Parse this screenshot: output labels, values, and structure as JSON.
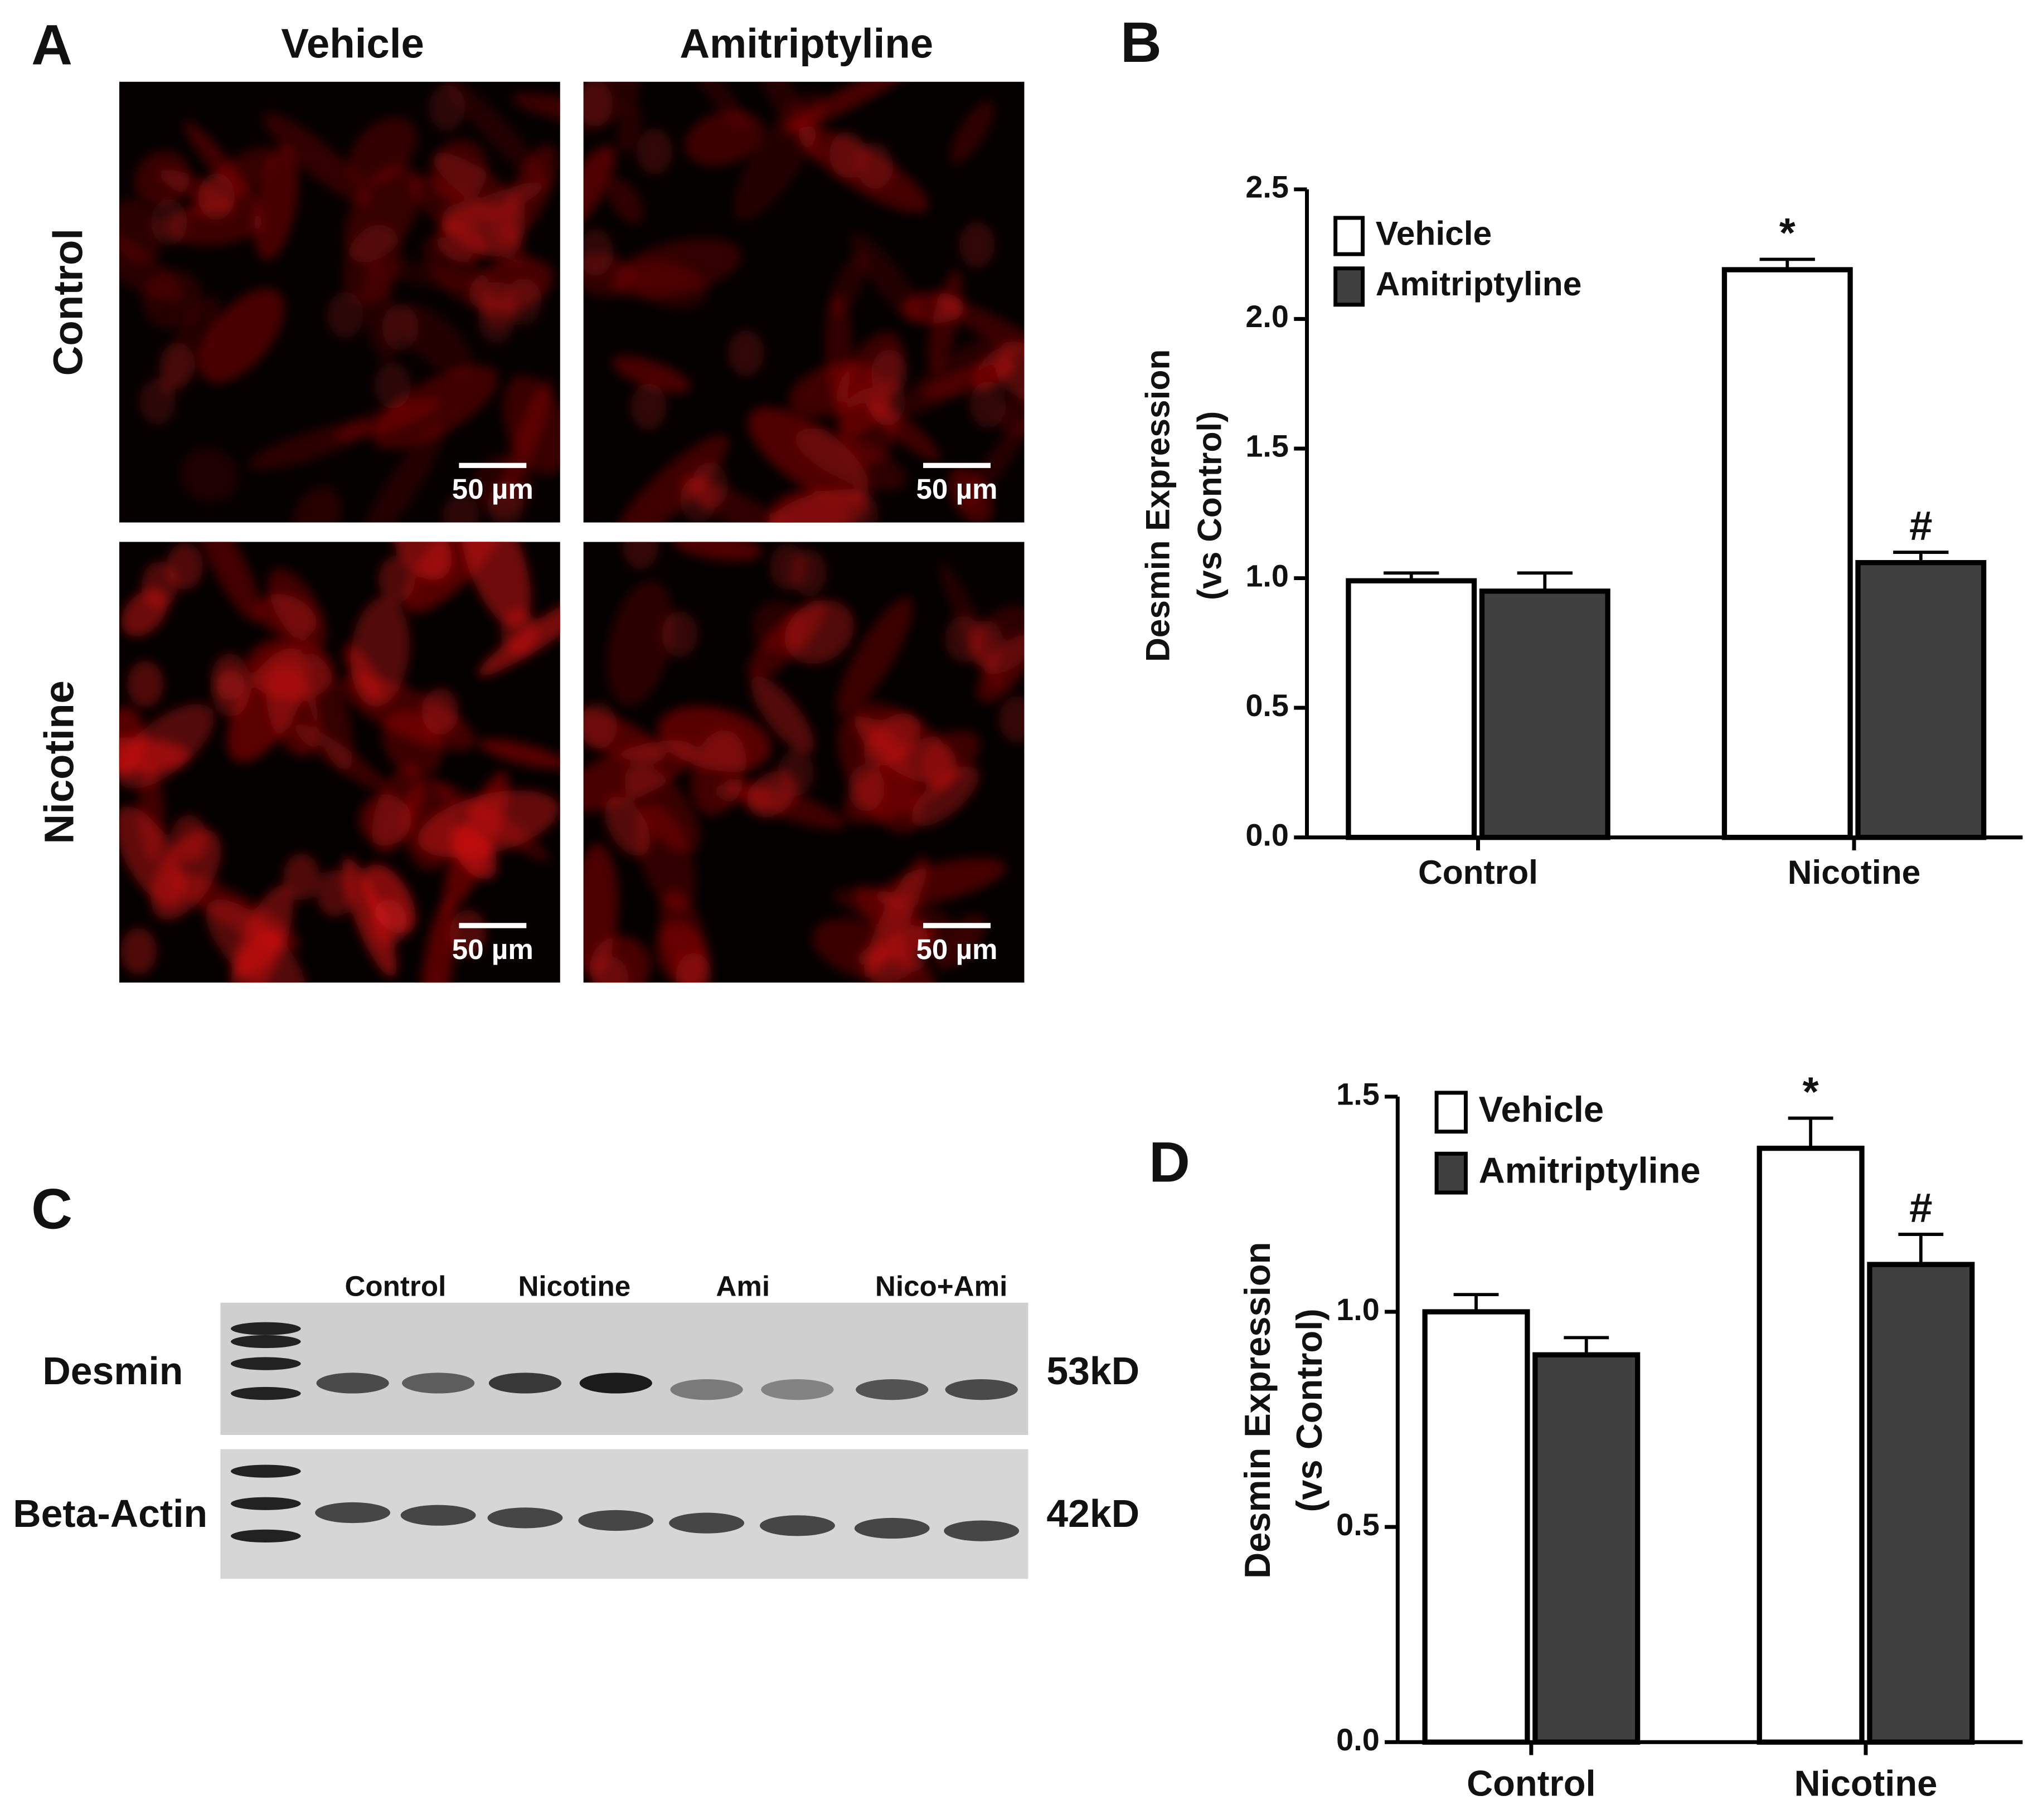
{
  "panels": [
    "A",
    "B",
    "C",
    "D"
  ],
  "microscopy": {
    "columns": [
      "Vehicle",
      "Amitriptyline"
    ],
    "rows": [
      "Control",
      "Nicotine"
    ],
    "scale_bars": [
      "50 µm",
      "50 µm",
      "50 µm",
      "50 µm"
    ]
  },
  "blot": {
    "lanes": [
      "Control",
      "Nicotine",
      "Ami",
      "Nico+Ami"
    ],
    "bands": [
      "Desmin",
      "Beta-Actin"
    ],
    "sizes": [
      "53kD",
      "42kD"
    ]
  },
  "chart_data": [
    {
      "type": "bar",
      "categories": [
        "Control",
        "Nicotine"
      ],
      "ylabel": [
        "Desmin Expression",
        "(vs Control)"
      ],
      "series": [
        {
          "name": "Vehicle",
          "color": "#ffffff",
          "values": [
            0.99,
            2.19
          ],
          "errors": [
            0.03,
            0.04
          ],
          "significance": [
            null,
            "*"
          ]
        },
        {
          "name": "Amitriptyline",
          "color": "#404040",
          "values": [
            0.95,
            1.06
          ],
          "errors": [
            0.07,
            0.04
          ],
          "significance": [
            null,
            "#"
          ]
        }
      ],
      "ylim": [
        0,
        2.5
      ],
      "yticks": [
        {
          "value": 0,
          "label": "0.0"
        },
        0.5,
        {
          "value": 1,
          "label": "1.0"
        },
        1.5,
        {
          "value": 2,
          "label": "2.0"
        },
        2.5
      ],
      "grid": false,
      "legend": "upper left"
    },
    {
      "type": "bar",
      "categories": [
        "Control",
        "Nicotine"
      ],
      "ylabel": [
        "Desmin Expression",
        "(vs Control)"
      ],
      "series": [
        {
          "name": "Vehicle",
          "color": "#ffffff",
          "values": [
            1.0,
            1.38
          ],
          "errors": [
            0.04,
            0.07
          ],
          "significance": [
            null,
            "*"
          ]
        },
        {
          "name": "Amitriptyline",
          "color": "#404040",
          "values": [
            0.9,
            1.11
          ],
          "errors": [
            0.04,
            0.07
          ],
          "significance": [
            null,
            "#"
          ]
        }
      ],
      "ylim": [
        0,
        1.5
      ],
      "yticks": [
        {
          "value": 0,
          "label": "0.0"
        },
        0.5,
        {
          "value": 1,
          "label": "1.0"
        },
        1.5
      ],
      "grid": false,
      "legend": "upper left"
    }
  ]
}
